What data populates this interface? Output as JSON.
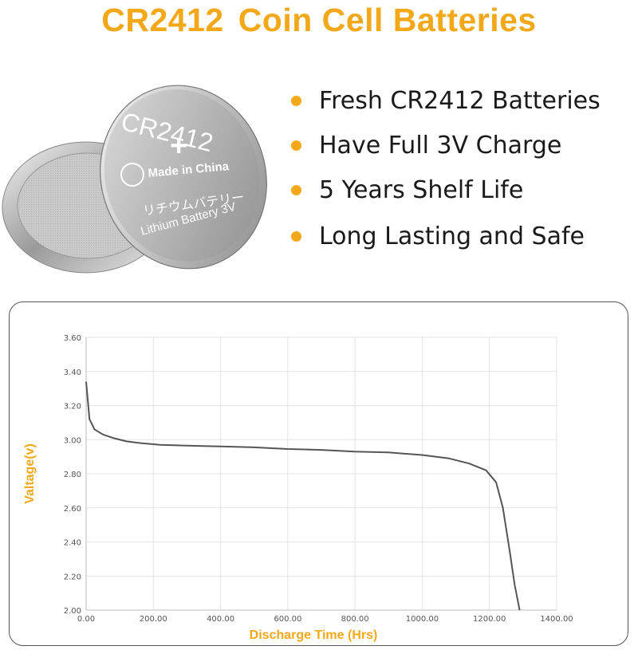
{
  "header": {
    "title_part1": "CR2412",
    "title_part2": "Coin Cell Batteries"
  },
  "battery": {
    "model": "CR2412",
    "plus": "+",
    "made_in": "Made in China",
    "japanese": "リチウムバテリー",
    "lithium": "Lithium Battery 3V"
  },
  "features": [
    "Fresh CR2412 Batteries",
    "Have Full 3V Charge",
    "5 Years Shelf Life",
    "Long Lasting and Safe"
  ],
  "colors": {
    "accent": "#f2a818",
    "curve": "#555555",
    "grid": "#e3e3e3"
  },
  "chart_data": {
    "type": "line",
    "xlabel": "Discharge Time (Hrs)",
    "ylabel": "Valtage(v)",
    "xlim": [
      0,
      1400
    ],
    "ylim": [
      2.0,
      3.6
    ],
    "x_ticks": [
      "0.00",
      "200.00",
      "400.00",
      "600.00",
      "800.00",
      "1000.00",
      "1200.00",
      "1400.00"
    ],
    "y_ticks": [
      "2.00",
      "2.20",
      "2.40",
      "2.60",
      "2.80",
      "3.00",
      "3.20",
      "3.40",
      "3.60"
    ],
    "grid": true,
    "series": [
      {
        "x": [
          0,
          10,
          25,
          50,
          80,
          120,
          160,
          220,
          300,
          400,
          500,
          600,
          700,
          800,
          900,
          1000,
          1080,
          1140,
          1190,
          1220,
          1240,
          1260,
          1275,
          1290
        ],
        "y": [
          3.34,
          3.12,
          3.06,
          3.03,
          3.01,
          2.99,
          2.98,
          2.97,
          2.965,
          2.96,
          2.955,
          2.945,
          2.94,
          2.93,
          2.925,
          2.91,
          2.89,
          2.86,
          2.82,
          2.75,
          2.6,
          2.35,
          2.15,
          2.0
        ]
      }
    ]
  }
}
